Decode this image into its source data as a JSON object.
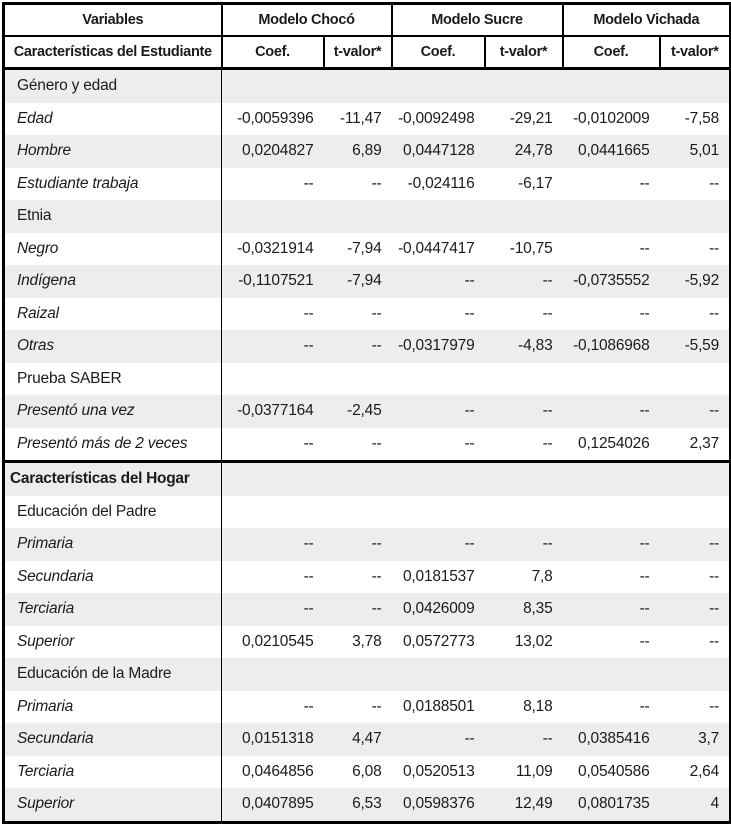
{
  "colors": {
    "border": "#000000",
    "band": "#ebedee",
    "text": "#1b1b1b",
    "background": "#ffffff"
  },
  "header": {
    "row1_col1": "Variables",
    "row2_col1": "Características del Estudiante",
    "groups": [
      "Modelo Chocó",
      "Modelo Sucre",
      "Modelo Vichada"
    ],
    "coef_label": "Coef.",
    "tvalor_label": "t-valor*"
  },
  "rows": [
    {
      "style": "section",
      "label": "Género y edad",
      "values": [
        "",
        "",
        "",
        "",
        "",
        ""
      ]
    },
    {
      "style": "var",
      "label": "Edad",
      "values": [
        "-0,0059396",
        "-11,47",
        "-0,0092498",
        "-29,21",
        "-0,0102009",
        "-7,58"
      ]
    },
    {
      "style": "var",
      "label": "Hombre",
      "values": [
        "0,0204827",
        "6,89",
        "0,0447128",
        "24,78",
        "0,0441665",
        "5,01"
      ]
    },
    {
      "style": "var",
      "label": "Estudiante trabaja",
      "values": [
        "--",
        "--",
        "-0,024116",
        "-6,17",
        "--",
        "--"
      ]
    },
    {
      "style": "section",
      "label": "Etnia",
      "values": [
        "",
        "",
        "",
        "",
        "",
        ""
      ]
    },
    {
      "style": "var",
      "label": "Negro",
      "values": [
        "-0,0321914",
        "-7,94",
        "-0,0447417",
        "-10,75",
        "--",
        "--"
      ]
    },
    {
      "style": "var",
      "label": "Indígena",
      "values": [
        "-0,1107521",
        "-7,94",
        "--",
        "--",
        "-0,0735552",
        "-5,92"
      ]
    },
    {
      "style": "var",
      "label": "Raizal",
      "values": [
        "--",
        "--",
        "--",
        "--",
        "--",
        "--"
      ]
    },
    {
      "style": "var",
      "label": "Otras",
      "values": [
        "--",
        "--",
        "-0,0317979",
        "-4,83",
        "-0,1086968",
        "-5,59"
      ]
    },
    {
      "style": "section",
      "label": "Prueba SABER",
      "values": [
        "",
        "",
        "",
        "",
        "",
        ""
      ]
    },
    {
      "style": "var",
      "label": "Presentó una vez",
      "values": [
        "-0,0377164",
        "-2,45",
        "--",
        "--",
        "--",
        "--"
      ]
    },
    {
      "style": "var",
      "label": "Presentó más de 2 veces",
      "values": [
        "--",
        "--",
        "--",
        "--",
        "0,1254026",
        "2,37"
      ]
    },
    {
      "style": "section-bold",
      "label": "Características del Hogar",
      "values": [
        "",
        "",
        "",
        "",
        "",
        ""
      ]
    },
    {
      "style": "section",
      "label": "Educación del Padre",
      "values": [
        "",
        "",
        "",
        "",
        "",
        ""
      ]
    },
    {
      "style": "var",
      "label": "Primaria",
      "values": [
        "--",
        "--",
        "--",
        "--",
        "--",
        "--"
      ]
    },
    {
      "style": "var",
      "label": "Secundaria",
      "values": [
        "--",
        "--",
        "0,0181537",
        "7,8",
        "--",
        "--"
      ]
    },
    {
      "style": "var",
      "label": "Terciaria",
      "values": [
        "--",
        "--",
        "0,0426009",
        "8,35",
        "--",
        "--"
      ]
    },
    {
      "style": "var",
      "label": "Superior",
      "values": [
        "0,0210545",
        "3,78",
        "0,0572773",
        "13,02",
        "--",
        "--"
      ]
    },
    {
      "style": "section",
      "label": "Educación de la Madre",
      "values": [
        "",
        "",
        "",
        "",
        "",
        ""
      ]
    },
    {
      "style": "var",
      "label": "Primaria",
      "values": [
        "--",
        "--",
        "0,0188501",
        "8,18",
        "--",
        "--"
      ]
    },
    {
      "style": "var",
      "label": "Secundaria",
      "values": [
        "0,0151318",
        "4,47",
        "--",
        "--",
        "0,0385416",
        "3,7"
      ]
    },
    {
      "style": "var",
      "label": "Terciaria",
      "values": [
        "0,0464856",
        "6,08",
        "0,0520513",
        "11,09",
        "0,0540586",
        "2,64"
      ]
    },
    {
      "style": "var",
      "label": "Superior",
      "values": [
        "0,0407895",
        "6,53",
        "0,0598376",
        "12,49",
        "0,0801735",
        "4"
      ]
    }
  ]
}
